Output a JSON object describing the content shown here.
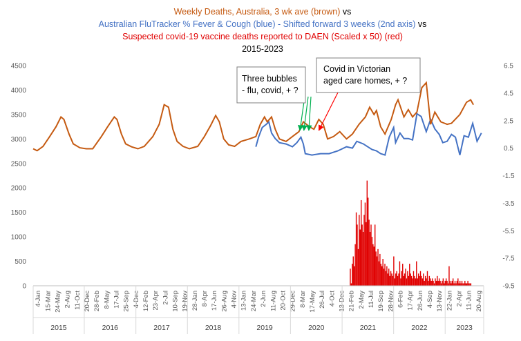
{
  "chart_data": {
    "type": "line",
    "title_lines": [
      {
        "text": "Weekly Deaths, Australia, 3 wk ave (brown)",
        "color": "#C55A11"
      },
      {
        "text": " vs",
        "color": "#000000"
      },
      {
        "text": "Australian FluTracker % Fever & Cough (blue) - Shifted forward 3 weeks (2nd axis)",
        "color": "#4472C4"
      },
      {
        "text": " vs",
        "color": "#000000"
      },
      {
        "text": "Suspected covid-19 vaccine deaths reported to DAEN (Scaled x 50) (red)",
        "color": "#E00000"
      },
      {
        "text": "2015-2023",
        "color": "#000000"
      }
    ],
    "y_left": {
      "min": 0,
      "max": 4500,
      "step": 500,
      "ticks": [
        "0",
        "500",
        "1000",
        "1500",
        "2000",
        "2500",
        "3000",
        "3500",
        "4000",
        "4500"
      ]
    },
    "y_right": {
      "min": -9.5,
      "max": 6.5,
      "step": 2,
      "ticks": [
        "-9.5",
        "-7.5",
        "-5.5",
        "-3.5",
        "-1.5",
        "0.5",
        "2.5",
        "4.5",
        "6.5"
      ]
    },
    "x_axis": {
      "type": "date",
      "start": "2015-01-04",
      "end": "2023-10-01",
      "tick_labels": [
        "4-Jan",
        "15-Mar",
        "24-May",
        "2-Aug",
        "11-Oct",
        "20-Dec",
        "28-Feb",
        "8-May",
        "17-Jul",
        "25-Sep",
        "4-Dec",
        "12-Feb",
        "23-Apr",
        "2-Jul",
        "10-Sep",
        "19-Nov",
        "28-Jan",
        "8-Apr",
        "17-Jun",
        "26-Aug",
        "4-Nov",
        "13-Jan",
        "24-Mar",
        "2-Jun",
        "11-Aug",
        "20-Oct",
        "29-Dec",
        "8-Mar",
        "17-May",
        "26-Jul",
        "4-Oct",
        "13-Dec",
        "21-Feb",
        "2-May",
        "11-Jul",
        "19-Sep",
        "28-Nov",
        "6-Feb",
        "17-Apr",
        "26-Jun",
        "4-Sep",
        "13-Nov",
        "22-Jan",
        "2-Apr",
        "11-Jun",
        "20-Aug"
      ],
      "years": [
        "2015",
        "2016",
        "2017",
        "2018",
        "2019",
        "2020",
        "2021",
        "2022",
        "2023"
      ]
    },
    "series": [
      {
        "name": "Weekly Deaths, Australia, 3 wk ave",
        "axis": "left",
        "color": "#C55A11",
        "x": [
          "2015-01-04",
          "2015-02-01",
          "2015-03-15",
          "2015-05-01",
          "2015-06-15",
          "2015-07-20",
          "2015-08-10",
          "2015-09-15",
          "2015-10-15",
          "2015-12-01",
          "2016-01-15",
          "2016-03-01",
          "2016-05-01",
          "2016-06-15",
          "2016-08-01",
          "2016-08-20",
          "2016-09-20",
          "2016-10-20",
          "2016-12-01",
          "2017-01-15",
          "2017-03-01",
          "2017-05-01",
          "2017-06-15",
          "2017-07-20",
          "2017-08-20",
          "2017-09-20",
          "2017-10-20",
          "2017-12-01",
          "2018-01-15",
          "2018-03-15",
          "2018-05-01",
          "2018-06-15",
          "2018-07-20",
          "2018-08-15",
          "2018-09-15",
          "2018-10-20",
          "2018-12-01",
          "2019-01-15",
          "2019-03-15",
          "2019-05-01",
          "2019-06-01",
          "2019-07-01",
          "2019-07-20",
          "2019-08-20",
          "2019-09-15",
          "2019-10-15",
          "2019-12-01",
          "2020-01-15",
          "2020-03-01",
          "2020-04-01",
          "2020-05-15",
          "2020-06-15",
          "2020-07-20",
          "2020-08-20",
          "2020-09-20",
          "2020-11-01",
          "2020-12-15",
          "2021-02-01",
          "2021-03-15",
          "2021-05-01",
          "2021-06-15",
          "2021-07-15",
          "2021-08-15",
          "2021-09-01",
          "2021-10-01",
          "2021-11-01",
          "2021-12-15",
          "2022-01-15",
          "2022-02-01",
          "2022-03-15",
          "2022-04-15",
          "2022-05-15",
          "2022-06-15",
          "2022-07-20",
          "2022-08-20",
          "2022-09-20",
          "2022-10-20",
          "2022-12-01",
          "2023-01-15",
          "2023-02-15",
          "2023-04-15",
          "2023-06-01",
          "2023-07-01",
          "2023-07-20"
        ],
        "y": [
          2800,
          2760,
          2850,
          3050,
          3250,
          3450,
          3400,
          3100,
          2900,
          2820,
          2800,
          2800,
          3050,
          3250,
          3450,
          3400,
          3100,
          2900,
          2840,
          2800,
          2850,
          3050,
          3300,
          3700,
          3650,
          3200,
          2950,
          2850,
          2800,
          2850,
          3050,
          3280,
          3480,
          3350,
          3000,
          2880,
          2850,
          2950,
          3000,
          3050,
          3300,
          3450,
          3350,
          3450,
          3200,
          3000,
          2950,
          3050,
          3150,
          3350,
          3250,
          3200,
          3400,
          3300,
          3000,
          3050,
          3150,
          3000,
          3100,
          3300,
          3450,
          3650,
          3500,
          3580,
          3250,
          3100,
          3400,
          3700,
          3800,
          3450,
          3600,
          3450,
          3550,
          4050,
          4150,
          3300,
          3550,
          3350,
          3300,
          3320,
          3500,
          3750,
          3800,
          3700
        ]
      },
      {
        "name": "Australian FluTracker % Fever & Cough",
        "axis": "right",
        "color": "#4472C4",
        "x": [
          "2019-05-01",
          "2019-05-20",
          "2019-06-15",
          "2019-07-10",
          "2019-08-01",
          "2019-08-20",
          "2019-09-15",
          "2019-10-15",
          "2019-12-01",
          "2020-01-15",
          "2020-02-15",
          "2020-03-15",
          "2020-04-01",
          "2020-04-15",
          "2020-06-01",
          "2020-08-01",
          "2020-10-01",
          "2020-12-01",
          "2021-02-01",
          "2021-03-15",
          "2021-04-15",
          "2021-06-01",
          "2021-07-01",
          "2021-08-01",
          "2021-09-01",
          "2021-10-01",
          "2021-11-01",
          "2021-12-01",
          "2022-01-01",
          "2022-01-15",
          "2022-02-15",
          "2022-03-15",
          "2022-04-15",
          "2022-05-15",
          "2022-06-15",
          "2022-07-15",
          "2022-08-20",
          "2022-09-20",
          "2022-10-20",
          "2022-11-20",
          "2022-12-15",
          "2023-01-15",
          "2023-02-15",
          "2023-03-15",
          "2023-04-15",
          "2023-05-15",
          "2023-06-15",
          "2023-07-15",
          "2023-08-15",
          "2023-09-15"
        ],
        "y": [
          0.6,
          1.3,
          2.0,
          2.2,
          2.4,
          1.6,
          1.2,
          0.9,
          0.8,
          0.6,
          0.9,
          1.3,
          0.8,
          0.1,
          0.0,
          0.1,
          0.1,
          0.3,
          0.6,
          0.5,
          1.0,
          0.8,
          0.6,
          0.4,
          0.3,
          0.1,
          0.0,
          1.3,
          2.0,
          0.9,
          1.6,
          1.2,
          1.2,
          1.1,
          3.0,
          2.8,
          1.7,
          2.6,
          1.9,
          1.5,
          0.9,
          1.0,
          1.5,
          1.3,
          0.0,
          1.4,
          1.3,
          2.3,
          1.0,
          1.6
        ]
      },
      {
        "name": "Suspected covid-19 vaccine deaths reported to DAEN (Scaled x 50)",
        "axis": "left",
        "type": "bar",
        "color": "#E00000",
        "x": [
          "2021-02-28",
          "2021-03-07",
          "2021-03-14",
          "2021-03-21",
          "2021-03-28",
          "2021-04-04",
          "2021-04-11",
          "2021-04-18",
          "2021-04-25",
          "2021-05-02",
          "2021-05-09",
          "2021-05-16",
          "2021-05-23",
          "2021-05-30",
          "2021-06-06",
          "2021-06-13",
          "2021-06-20",
          "2021-06-27",
          "2021-07-04",
          "2021-07-11",
          "2021-07-18",
          "2021-07-25",
          "2021-08-01",
          "2021-08-08",
          "2021-08-15",
          "2021-08-22",
          "2021-08-29",
          "2021-09-05",
          "2021-09-12",
          "2021-09-19",
          "2021-09-26",
          "2021-10-03",
          "2021-10-10",
          "2021-10-17",
          "2021-10-24",
          "2021-10-31",
          "2021-11-07",
          "2021-11-14",
          "2021-11-21",
          "2021-11-28",
          "2021-12-05",
          "2021-12-12",
          "2021-12-19",
          "2021-12-26",
          "2022-01-02",
          "2022-01-09",
          "2022-01-16",
          "2022-01-23",
          "2022-01-30",
          "2022-02-06",
          "2022-02-13",
          "2022-02-20",
          "2022-02-27",
          "2022-03-06",
          "2022-03-13",
          "2022-03-20",
          "2022-03-27",
          "2022-04-03",
          "2022-04-10",
          "2022-04-17",
          "2022-04-24",
          "2022-05-01",
          "2022-05-08",
          "2022-05-15",
          "2022-05-22",
          "2022-05-29",
          "2022-06-05",
          "2022-06-12",
          "2022-06-19",
          "2022-06-26",
          "2022-07-03",
          "2022-07-10",
          "2022-07-17",
          "2022-07-24",
          "2022-07-31",
          "2022-08-07",
          "2022-08-14",
          "2022-08-21",
          "2022-08-28",
          "2022-09-04",
          "2022-09-11",
          "2022-09-18",
          "2022-09-25",
          "2022-10-02",
          "2022-10-09",
          "2022-10-16",
          "2022-10-23",
          "2022-10-30",
          "2022-11-06",
          "2022-11-13",
          "2022-11-20",
          "2022-11-27",
          "2022-12-04",
          "2022-12-11",
          "2022-12-18",
          "2022-12-25",
          "2023-01-01",
          "2023-01-08",
          "2023-01-15",
          "2023-01-22",
          "2023-01-29",
          "2023-02-05",
          "2023-02-12",
          "2023-02-19",
          "2023-02-26",
          "2023-03-05",
          "2023-03-12",
          "2023-03-19",
          "2023-03-26",
          "2023-04-02",
          "2023-04-09",
          "2023-04-16",
          "2023-04-23",
          "2023-04-30",
          "2023-05-07",
          "2023-05-14",
          "2023-05-21",
          "2023-05-28",
          "2023-06-04",
          "2023-06-11",
          "2023-06-18",
          "2023-06-25",
          "2023-07-02"
        ],
        "y": [
          350,
          50,
          450,
          600,
          400,
          850,
          1500,
          1250,
          750,
          1450,
          1150,
          1750,
          1250,
          1100,
          1450,
          1700,
          1300,
          2150,
          1800,
          1350,
          1100,
          1250,
          1000,
          850,
          800,
          1250,
          700,
          600,
          750,
          500,
          650,
          450,
          400,
          550,
          350,
          450,
          300,
          400,
          250,
          350,
          200,
          300,
          250,
          200,
          600,
          150,
          250,
          300,
          200,
          250,
          500,
          150,
          300,
          450,
          200,
          250,
          350,
          150,
          300,
          200,
          450,
          250,
          200,
          150,
          300,
          200,
          150,
          500,
          150,
          250,
          200,
          300,
          200,
          150,
          250,
          100,
          200,
          150,
          300,
          100,
          200,
          150,
          100,
          150,
          100,
          50,
          150,
          100,
          200,
          100,
          150,
          100,
          50,
          100,
          150,
          50,
          100,
          150,
          100,
          50,
          400,
          100,
          50,
          100,
          150,
          50,
          100,
          50,
          100,
          150,
          50,
          100,
          50,
          100,
          50,
          50,
          100,
          50,
          50,
          100,
          50,
          50,
          50
        ]
      }
    ],
    "annotations": [
      {
        "lines": [
          "Three bubbles",
          "- flu, covid, + ?"
        ],
        "arrow_color": "#00B050",
        "targets": [
          "2020-03-08",
          "2020-04-05",
          "2020-05-10"
        ]
      },
      {
        "lines": [
          "Covid in Victorian",
          "aged care homes, + ?"
        ],
        "arrow_color": "#FF0000",
        "targets": [
          "2020-07-20"
        ]
      }
    ],
    "grid": false,
    "legend": "none"
  }
}
